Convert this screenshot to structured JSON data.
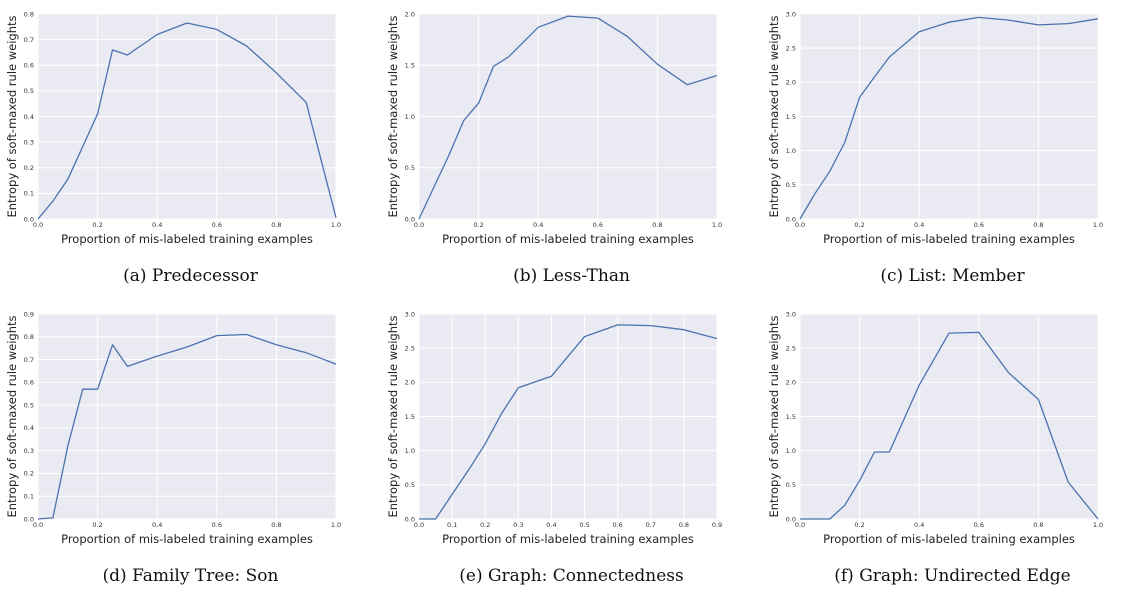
{
  "chart_data": [
    {
      "type": "line",
      "caption": "(a) Predecessor",
      "xlabel": "Proportion of mis-labeled training examples",
      "ylabel": "Entropy of soft-maxed rule weights",
      "xlim": [
        0,
        1.0
      ],
      "ylim": [
        0,
        0.8
      ],
      "xticks": [
        "0.0",
        "0.2",
        "0.4",
        "0.6",
        "0.8",
        "1.0"
      ],
      "yticks": [
        "0.0",
        "0.1",
        "0.2",
        "0.3",
        "0.4",
        "0.5",
        "0.6",
        "0.7",
        "0.8"
      ],
      "x": [
        0,
        0.05,
        0.1,
        0.2,
        0.25,
        0.3,
        0.4,
        0.5,
        0.6,
        0.7,
        0.8,
        0.9,
        1.0
      ],
      "y": [
        0.0,
        0.07,
        0.155,
        0.41,
        0.66,
        0.64,
        0.72,
        0.765,
        0.74,
        0.675,
        0.57,
        0.455,
        0.005
      ],
      "grid": true
    },
    {
      "type": "line",
      "caption": "(b) Less-Than",
      "xlabel": "Proportion of mis-labeled training examples",
      "ylabel": "Entropy of soft-maxed rule weights",
      "xlim": [
        0,
        1.0
      ],
      "ylim": [
        0,
        2.0
      ],
      "xticks": [
        "0.0",
        "0.2",
        "0.4",
        "0.6",
        "0.8",
        "1.0"
      ],
      "yticks": [
        "0.0",
        "0.5",
        "1.0",
        "1.5",
        "2.0"
      ],
      "x": [
        0,
        0.1,
        0.15,
        0.2,
        0.25,
        0.3,
        0.4,
        0.5,
        0.6,
        0.7,
        0.8,
        0.9,
        1.0
      ],
      "y": [
        0.0,
        0.62,
        0.96,
        1.13,
        1.49,
        1.58,
        1.87,
        1.98,
        1.96,
        1.78,
        1.51,
        1.31,
        1.4
      ],
      "grid": true
    },
    {
      "type": "line",
      "caption": "(c) List: Member",
      "xlabel": "Proportion of mis-labeled training examples",
      "ylabel": "Entropy of soft-maxed rule weights",
      "xlim": [
        0,
        1.0
      ],
      "ylim": [
        0,
        3.0
      ],
      "xticks": [
        "0.0",
        "0.2",
        "0.4",
        "0.6",
        "0.8",
        "1.0"
      ],
      "yticks": [
        "0.0",
        "0.5",
        "1.0",
        "1.5",
        "2.0",
        "2.5",
        "3.0"
      ],
      "x": [
        0,
        0.05,
        0.1,
        0.15,
        0.2,
        0.25,
        0.3,
        0.4,
        0.5,
        0.6,
        0.7,
        0.8,
        0.9,
        1.0
      ],
      "y": [
        0.0,
        0.37,
        0.7,
        1.12,
        1.78,
        2.08,
        2.37,
        2.74,
        2.88,
        2.95,
        2.91,
        2.84,
        2.86,
        2.93
      ],
      "grid": true
    },
    {
      "type": "line",
      "caption": "(d) Family Tree: Son",
      "xlabel": "Proportion of mis-labeled training examples",
      "ylabel": "Entropy of soft-maxed rule weights",
      "xlim": [
        0,
        1.0
      ],
      "ylim": [
        0,
        0.9
      ],
      "xticks": [
        "0.0",
        "0.2",
        "0.4",
        "0.6",
        "0.8",
        "1.0"
      ],
      "yticks": [
        "0.0",
        "0.1",
        "0.2",
        "0.3",
        "0.4",
        "0.5",
        "0.6",
        "0.7",
        "0.8",
        "0.9"
      ],
      "x": [
        0,
        0.05,
        0.1,
        0.15,
        0.2,
        0.25,
        0.3,
        0.4,
        0.5,
        0.6,
        0.7,
        0.8,
        0.9,
        1.0
      ],
      "y": [
        0.0,
        0.005,
        0.32,
        0.57,
        0.57,
        0.765,
        0.67,
        0.715,
        0.755,
        0.805,
        0.81,
        0.765,
        0.73,
        0.68
      ],
      "grid": true
    },
    {
      "type": "line",
      "caption": "(e) Graph: Connectedness",
      "xlabel": "Proportion of mis-labeled training examples",
      "ylabel": "Entropy of soft-maxed rule weights",
      "xlim": [
        0,
        0.9
      ],
      "ylim": [
        0,
        3.0
      ],
      "xticks": [
        "0.0",
        "0.1",
        "0.2",
        "0.3",
        "0.4",
        "0.5",
        "0.6",
        "0.7",
        "0.8",
        "0.9"
      ],
      "yticks": [
        "0.0",
        "0.5",
        "1.0",
        "1.5",
        "2.0",
        "2.5",
        "3.0"
      ],
      "x": [
        0,
        0.05,
        0.1,
        0.15,
        0.2,
        0.25,
        0.3,
        0.4,
        0.5,
        0.6,
        0.7,
        0.8,
        0.9
      ],
      "y": [
        0.0,
        0.0,
        0.36,
        0.72,
        1.1,
        1.55,
        1.92,
        2.09,
        2.67,
        2.84,
        2.83,
        2.77,
        2.64
      ],
      "grid": true
    },
    {
      "type": "line",
      "caption": "(f) Graph: Undirected Edge",
      "xlabel": "Proportion of mis-labeled training examples",
      "ylabel": "Entropy of soft-maxed rule weights",
      "xlim": [
        0,
        1.0
      ],
      "ylim": [
        0,
        3.0
      ],
      "xticks": [
        "0.0",
        "0.2",
        "0.4",
        "0.6",
        "0.8",
        "1.0"
      ],
      "yticks": [
        "0.0",
        "0.5",
        "1.0",
        "1.5",
        "2.0",
        "2.5",
        "3.0"
      ],
      "x": [
        0,
        0.05,
        0.1,
        0.15,
        0.2,
        0.25,
        0.3,
        0.4,
        0.5,
        0.6,
        0.7,
        0.8,
        0.9,
        1.0
      ],
      "y": [
        0.0,
        0.0,
        0.0,
        0.2,
        0.56,
        0.98,
        0.98,
        1.96,
        2.72,
        2.73,
        2.14,
        1.75,
        0.54,
        0.0
      ],
      "grid": true
    }
  ]
}
